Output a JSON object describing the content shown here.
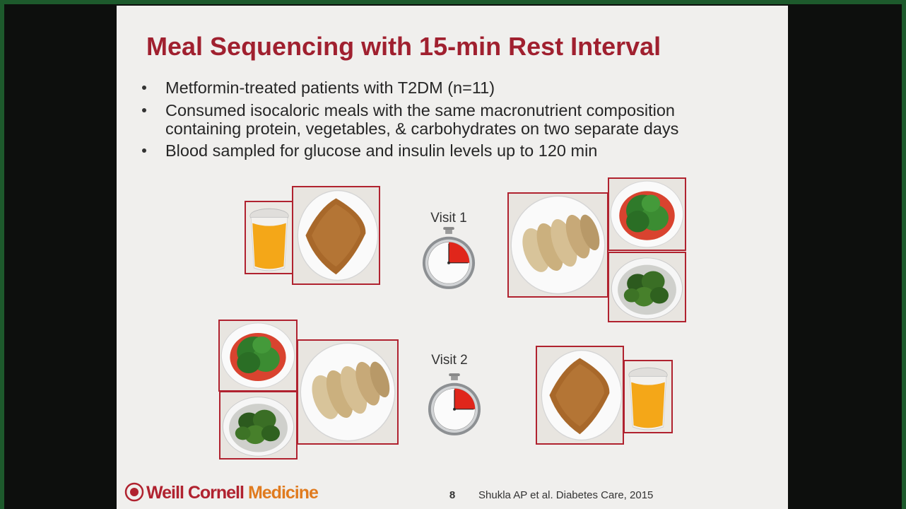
{
  "slide": {
    "title": "Meal Sequencing with 15-min Rest Interval",
    "bullets": [
      [
        "Metformin-treated patients with T2DM (n=11)"
      ],
      [
        "Consumed isocaloric meals with the same macronutrient composition",
        "containing protein, vegetables, & carbohydrates on two separate days"
      ],
      [
        "Blood sampled for glucose and insulin levels up to 120 min"
      ]
    ],
    "visits": [
      "Visit 1",
      "Visit 2"
    ],
    "footer": {
      "logo": [
        "Weill Cornell",
        "Medicine"
      ],
      "page_number": "8",
      "citation": "Shukla AP et al. Diabetes Care, 2015"
    }
  }
}
